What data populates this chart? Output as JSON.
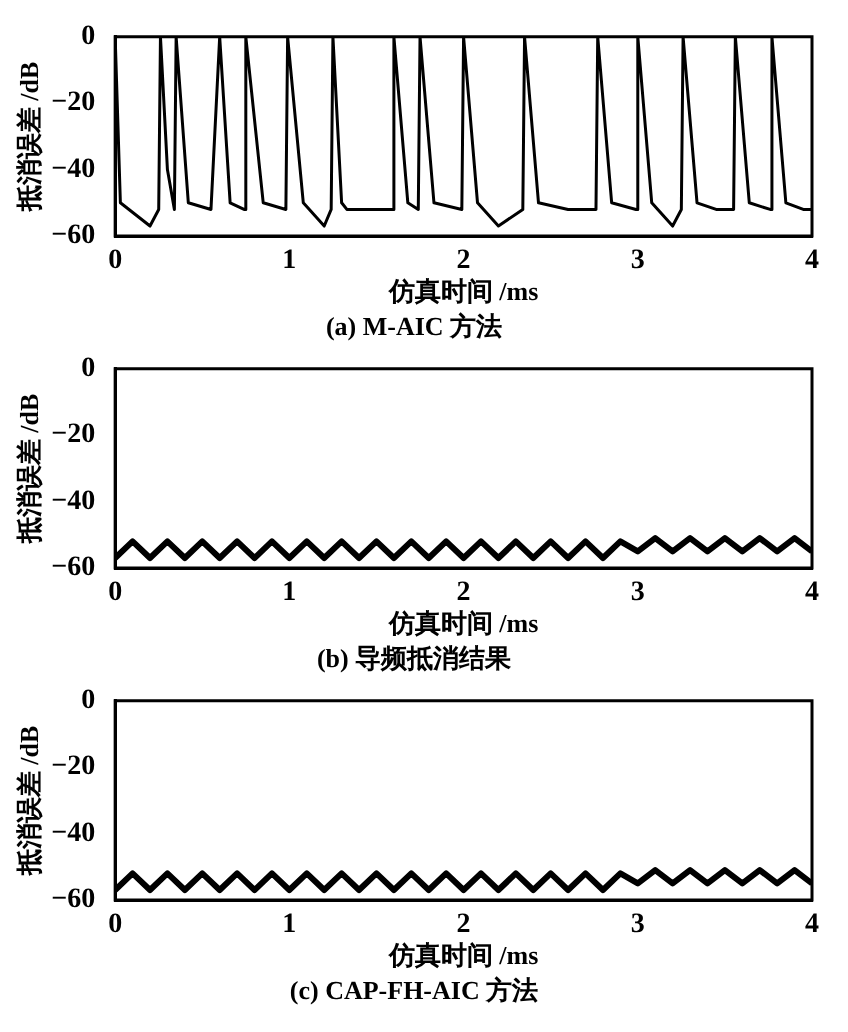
{
  "chart_data": [
    {
      "type": "line",
      "title": "(a) M-AIC 方法",
      "ylabel": "抵消误差 /dB",
      "xlabel": "仿真时间 /ms",
      "color": "#000000",
      "xlim": [
        0,
        4
      ],
      "ylim": [
        -60,
        0
      ],
      "xticks": [
        0,
        1,
        2,
        3,
        4
      ],
      "yticks": [
        -60,
        -40,
        -20,
        0
      ],
      "x": [
        0,
        0.03,
        0.2,
        0.25,
        0.26,
        0.3,
        0.34,
        0.35,
        0.42,
        0.55,
        0.6,
        0.66,
        0.74,
        0.75,
        0.85,
        0.98,
        0.99,
        1.08,
        1.2,
        1.24,
        1.25,
        1.3,
        1.33,
        1.5,
        1.59,
        1.6,
        1.68,
        1.74,
        1.75,
        1.83,
        1.99,
        2.0,
        2.08,
        2.2,
        2.34,
        2.35,
        2.43,
        2.6,
        2.76,
        2.77,
        2.85,
        2.99,
        3.0,
        3.08,
        3.2,
        3.25,
        3.26,
        3.34,
        3.45,
        3.55,
        3.56,
        3.64,
        3.76,
        3.77,
        3.85,
        3.95,
        4.0
      ],
      "values": [
        0,
        -50,
        -57,
        -52,
        0,
        -40,
        -52,
        0,
        -50,
        -52,
        0,
        -50,
        -52,
        0,
        -50,
        -52,
        0,
        -50,
        -57,
        -52,
        0,
        -50,
        -52,
        -52,
        -52,
        0,
        -50,
        -52,
        0,
        -50,
        -52,
        0,
        -50,
        -57,
        -52,
        0,
        -50,
        -52,
        -52,
        0,
        -50,
        -52,
        0,
        -50,
        -57,
        -52,
        0,
        -50,
        -52,
        -52,
        0,
        -50,
        -52,
        0,
        -50,
        -52,
        -52
      ]
    },
    {
      "type": "line",
      "title": "(b) 导频抵消结果",
      "ylabel": "抵消误差 /dB",
      "xlabel": "仿真时间 /ms",
      "color": "#000000",
      "xlim": [
        0,
        4
      ],
      "ylim": [
        -60,
        0
      ],
      "xticks": [
        0,
        1,
        2,
        3,
        4
      ],
      "yticks": [
        -60,
        -40,
        -20,
        0
      ],
      "x": [
        0,
        0.1,
        0.2,
        0.3,
        0.4,
        0.5,
        0.6,
        0.7,
        0.8,
        0.9,
        1,
        1.1,
        1.2,
        1.3,
        1.4,
        1.5,
        1.6,
        1.7,
        1.8,
        1.9,
        2,
        2.1,
        2.2,
        2.3,
        2.4,
        2.5,
        2.6,
        2.7,
        2.8,
        2.9,
        3,
        3.1,
        3.2,
        3.3,
        3.4,
        3.5,
        3.6,
        3.7,
        3.8,
        3.9,
        4
      ],
      "values": [
        -57,
        -52,
        -57,
        -52,
        -57,
        -52,
        -57,
        -52,
        -57,
        -52,
        -57,
        -52,
        -57,
        -52,
        -57,
        -52,
        -57,
        -52,
        -57,
        -52,
        -57,
        -52,
        -57,
        -52,
        -57,
        -52,
        -57,
        -52,
        -57,
        -52,
        -55,
        -51,
        -55,
        -51,
        -55,
        -51,
        -55,
        -51,
        -55,
        -51,
        -55
      ]
    },
    {
      "type": "line",
      "title": "(c) CAP-FH-AIC 方法",
      "ylabel": "抵消误差 /dB",
      "xlabel": "仿真时间 /ms",
      "color": "#000000",
      "xlim": [
        0,
        4
      ],
      "ylim": [
        -60,
        0
      ],
      "xticks": [
        0,
        1,
        2,
        3,
        4
      ],
      "yticks": [
        -60,
        -40,
        -20,
        0
      ],
      "x": [
        0,
        0.1,
        0.2,
        0.3,
        0.4,
        0.5,
        0.6,
        0.7,
        0.8,
        0.9,
        1,
        1.1,
        1.2,
        1.3,
        1.4,
        1.5,
        1.6,
        1.7,
        1.8,
        1.9,
        2,
        2.1,
        2.2,
        2.3,
        2.4,
        2.5,
        2.6,
        2.7,
        2.8,
        2.9,
        3,
        3.1,
        3.2,
        3.3,
        3.4,
        3.5,
        3.6,
        3.7,
        3.8,
        3.9,
        4
      ],
      "values": [
        -57,
        -52,
        -57,
        -52,
        -57,
        -52,
        -57,
        -52,
        -57,
        -52,
        -57,
        -52,
        -57,
        -52,
        -57,
        -52,
        -57,
        -52,
        -57,
        -52,
        -57,
        -52,
        -57,
        -52,
        -57,
        -52,
        -57,
        -52,
        -57,
        -52,
        -55,
        -51,
        -55,
        -51,
        -55,
        -51,
        -55,
        -51,
        -55,
        -51,
        -55
      ]
    }
  ]
}
